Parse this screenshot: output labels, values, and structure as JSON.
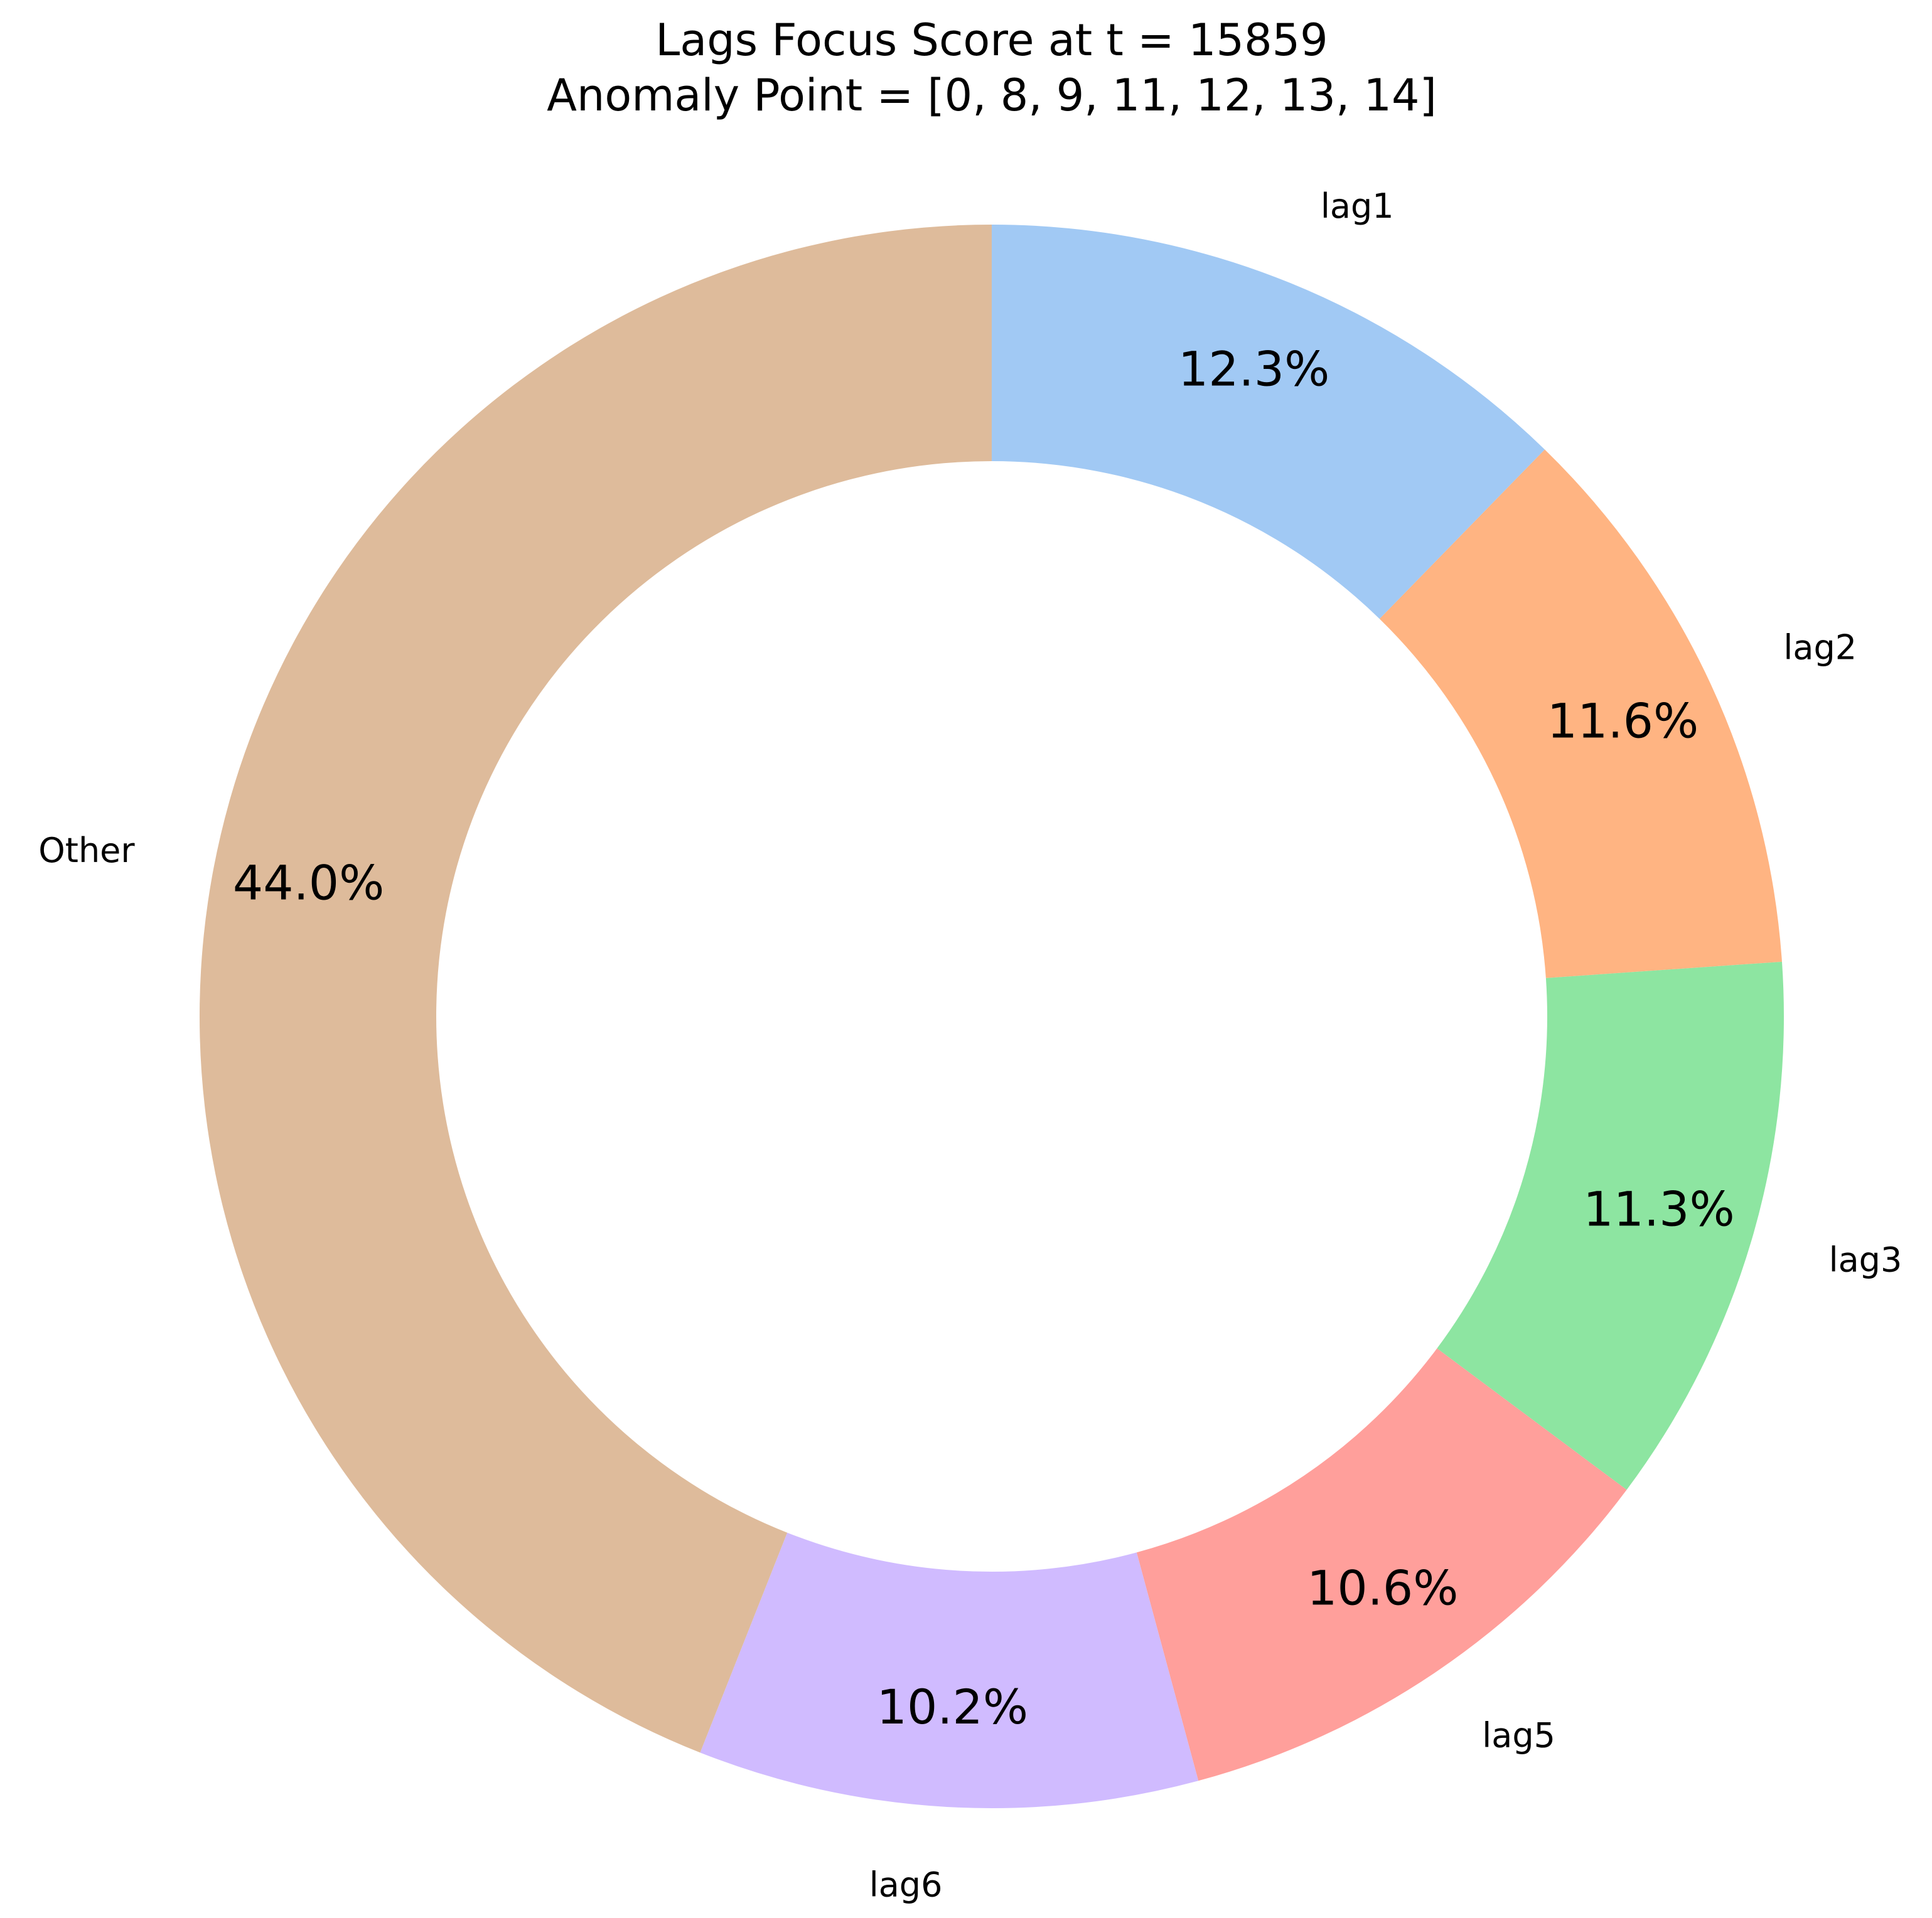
{
  "chart_data": {
    "type": "pie",
    "variant": "donut",
    "title": "Lags Focus Score at t = 15859",
    "subtitle": "Anomaly Point = [0, 8, 9, 11, 12, 13, 14]",
    "start_angle_deg": 90,
    "direction": "clockwise",
    "slices": [
      {
        "label": "lag1",
        "value": 12.3,
        "pct_label": "12.3%",
        "color": "#a1c9f4"
      },
      {
        "label": "lag2",
        "value": 11.6,
        "pct_label": "11.6%",
        "color": "#ffb482"
      },
      {
        "label": "lag3",
        "value": 11.3,
        "pct_label": "11.3%",
        "color": "#8de5a1"
      },
      {
        "label": "lag5",
        "value": 10.6,
        "pct_label": "10.6%",
        "color": "#ff9f9b"
      },
      {
        "label": "lag6",
        "value": 10.2,
        "pct_label": "10.2%",
        "color": "#d0bbff"
      },
      {
        "label": "Other",
        "value": 44.0,
        "pct_label": "44.0%",
        "color": "#debb9b"
      }
    ]
  }
}
